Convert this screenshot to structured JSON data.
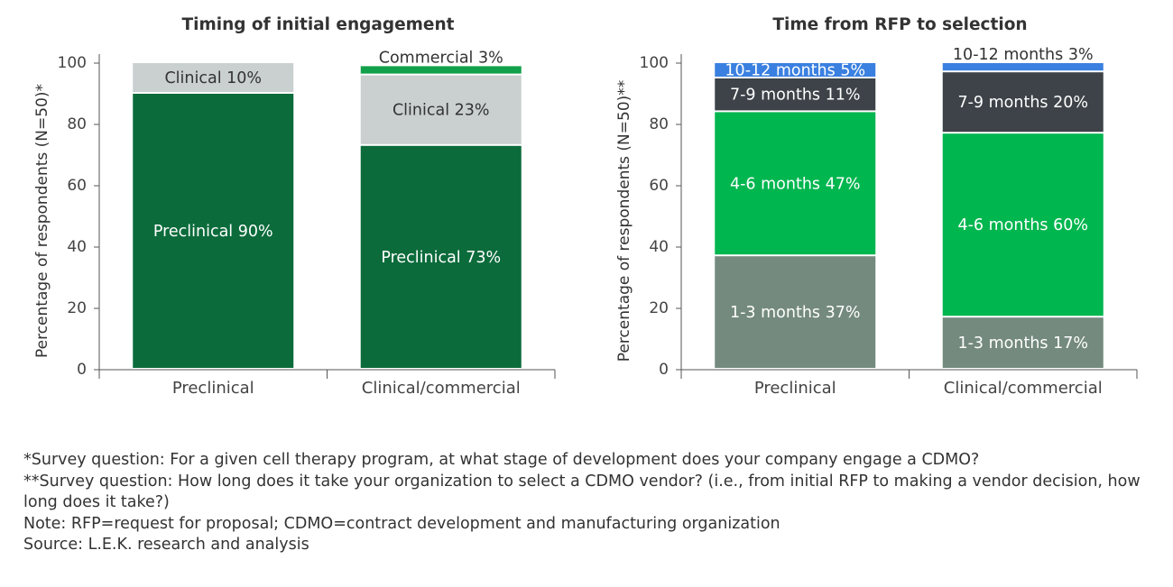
{
  "chart_data": [
    {
      "type": "stacked-bar",
      "title": "Timing of initial engagement",
      "y_label": "Percentage of respondents (N=50)*",
      "categories": [
        "Preclinical",
        "Clinical/commercial"
      ],
      "series": [
        {
          "name": "Preclinical",
          "color": "#0b6b3b",
          "values": [
            90,
            73
          ],
          "value_labels": [
            "Preclinical 90%",
            "Preclinical 73%"
          ]
        },
        {
          "name": "Clinical",
          "color": "#c9d0cf",
          "values": [
            10,
            23
          ],
          "value_labels": [
            "Clinical 10%",
            "Clinical 23%"
          ]
        },
        {
          "name": "Commercial",
          "color": "#12a04a",
          "values": [
            null,
            3
          ],
          "value_labels": [
            null,
            "Commercial 3%"
          ]
        }
      ],
      "ylim": [
        0,
        100
      ],
      "yticks": [
        0,
        20,
        40,
        60,
        80,
        100
      ]
    },
    {
      "type": "stacked-bar",
      "title": "Time from RFP to selection",
      "y_label": "Percentage of respondents (N=50)**",
      "categories": [
        "Preclinical",
        "Clinical/commercial"
      ],
      "series": [
        {
          "name": "1-3 months",
          "color": "#748a7e",
          "values": [
            37,
            17
          ],
          "value_labels": [
            "1-3 months 37%",
            "1-3 months 17%"
          ]
        },
        {
          "name": "4-6 months",
          "color": "#00b64f",
          "values": [
            47,
            60
          ],
          "value_labels": [
            "4-6 months 47%",
            "4-6 months 60%"
          ]
        },
        {
          "name": "7-9 months",
          "color": "#3d4348",
          "values": [
            11,
            20
          ],
          "value_labels": [
            "7-9 months 11%",
            "7-9 months 20%"
          ]
        },
        {
          "name": "10-12 months",
          "color": "#3a80e0",
          "values": [
            5,
            3
          ],
          "value_labels": [
            "10-12 months 5%",
            "10-12 months 3%"
          ]
        }
      ],
      "ylim": [
        0,
        100
      ],
      "yticks": [
        0,
        20,
        40,
        60,
        80,
        100
      ]
    }
  ],
  "notes": [
    "*Survey question: For a given cell therapy program, at what stage of development does your company engage a CDMO?",
    "**Survey question: How long does it take your organization to select a CDMO vendor? (i.e., from initial RFP to making a vendor decision, how long does it take?)",
    "Note: RFP=request for proposal; CDMO=contract development and manufacturing organization",
    "Source: L.E.K. research and analysis"
  ]
}
